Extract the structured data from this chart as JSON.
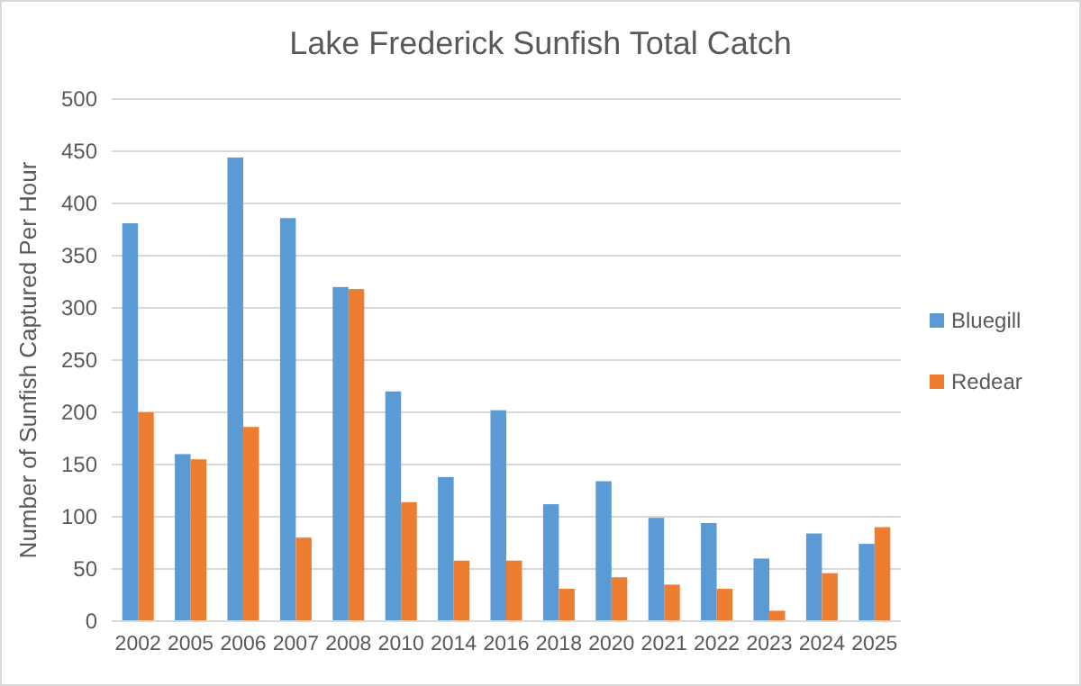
{
  "chart_data": {
    "type": "bar",
    "title": "Lake Frederick Sunfish Total Catch",
    "ylabel": "Number of Sunfish Captured Per Hour",
    "categories": [
      "2002",
      "2005",
      "2006",
      "2007",
      "2008",
      "2010",
      "2014",
      "2016",
      "2018",
      "2020",
      "2021",
      "2022",
      "2023",
      "2024",
      "2025"
    ],
    "series": [
      {
        "name": "Bluegill",
        "color": "#5b9bd5",
        "values": [
          381,
          160,
          444,
          386,
          320,
          220,
          138,
          202,
          112,
          134,
          99,
          94,
          60,
          84,
          74
        ]
      },
      {
        "name": "Redear",
        "color": "#ed7d31",
        "values": [
          200,
          155,
          186,
          80,
          318,
          114,
          58,
          58,
          31,
          42,
          35,
          31,
          10,
          46,
          90
        ]
      }
    ],
    "ylim": [
      0,
      500
    ],
    "yticks": [
      0,
      50,
      100,
      150,
      200,
      250,
      300,
      350,
      400,
      450,
      500
    ],
    "grid": "y",
    "legend": "right"
  }
}
